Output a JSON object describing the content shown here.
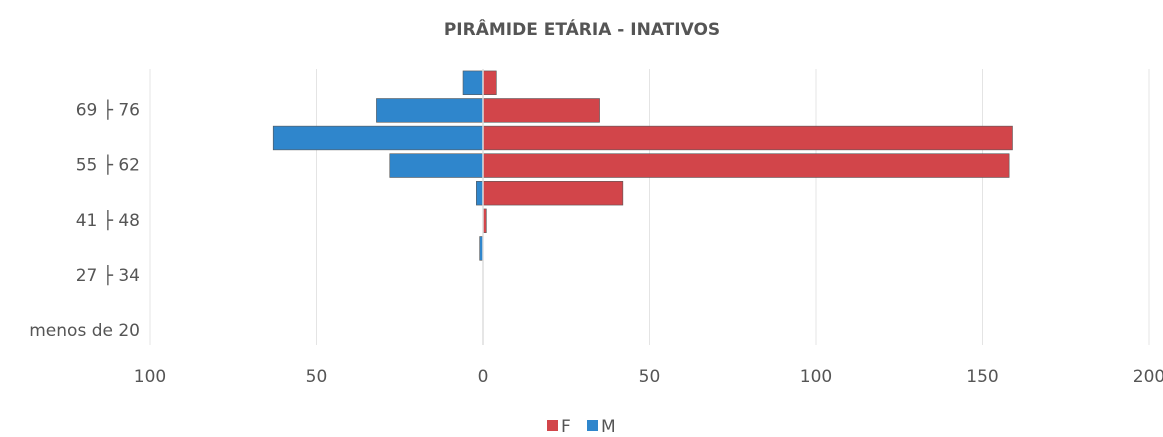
{
  "chart_data": {
    "type": "bar",
    "orientation": "horizontal",
    "stacked": false,
    "title": "PIRÂMIDE ETÁRIA - INATIVOS",
    "categories": [
      "menos de 20",
      null,
      "27 ├ 34",
      null,
      "41 ├ 48",
      null,
      "55 ├ 62",
      null,
      "69 ├ 76",
      null
    ],
    "series": [
      {
        "name": "F",
        "color": "#d2454a",
        "values": [
          0,
          0,
          0,
          0,
          1,
          42,
          158,
          159,
          35,
          4
        ]
      },
      {
        "name": "M",
        "color": "#2f86cc",
        "values": [
          0,
          0,
          0,
          -1,
          0,
          -2,
          -28,
          -63,
          -32,
          -6
        ]
      }
    ],
    "xlim": [
      -100,
      200
    ],
    "xticks": [
      {
        "value": -100,
        "label": "100"
      },
      {
        "value": -50,
        "label": "50"
      },
      0,
      50,
      100,
      150,
      200
    ],
    "grid": true,
    "legend": "bottom"
  }
}
